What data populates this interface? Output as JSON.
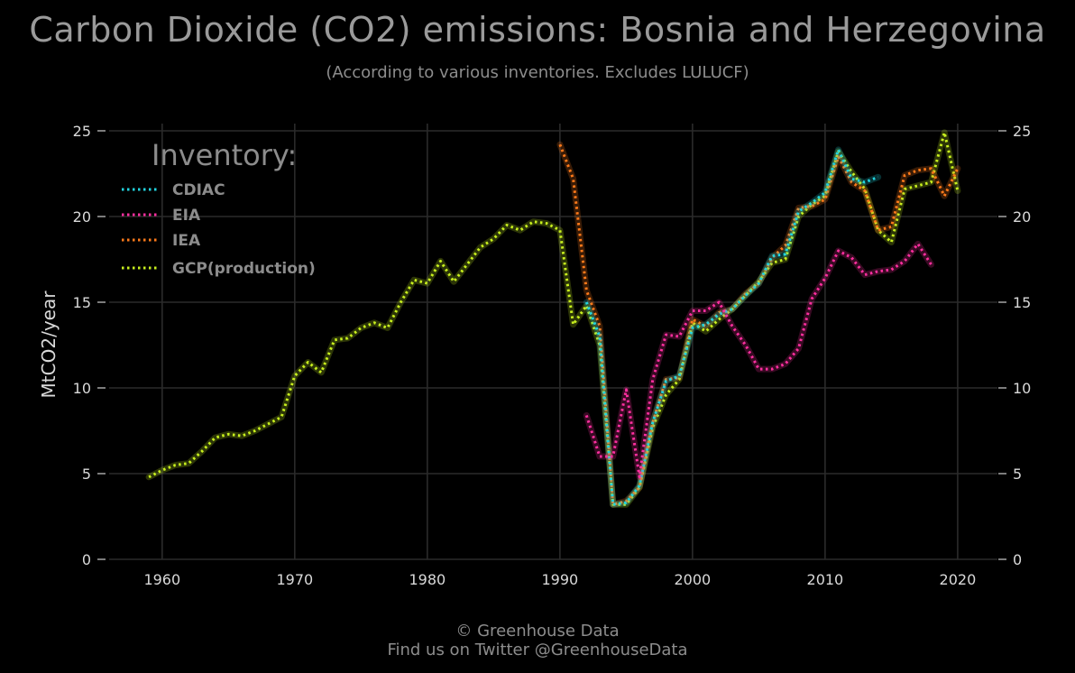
{
  "colors": {
    "background": "#000000",
    "title": "#9a9a9a",
    "text": "#d9d9d9",
    "grid": "#2b2b2b",
    "CDIAC": "#22d4e0",
    "EIA": "#ff2fa0",
    "IEA": "#ff7a1a",
    "GCP": "#c8f01e"
  },
  "chart_data": {
    "type": "line",
    "title": "Carbon Dioxide (CO2) emissions: Bosnia and Herzegovina",
    "subtitle": "(According to various inventories. Excludes LULUCF)",
    "xlabel": "",
    "ylabel": "MtCO2/year",
    "xlim": [
      1956,
      2023
    ],
    "ylim": [
      0,
      26
    ],
    "x_ticks": [
      1960,
      1970,
      1980,
      1990,
      2000,
      2010,
      2020
    ],
    "y_ticks": [
      0,
      5,
      10,
      15,
      20,
      25
    ],
    "grid": true,
    "secondary_y_axis": true,
    "legend": {
      "title": "Inventory:",
      "position": "top-left",
      "entries": [
        "CDIAC",
        "EIA",
        "IEA",
        "GCP(production)"
      ]
    },
    "series": [
      {
        "name": "GCP(production)",
        "color_key": "GCP",
        "x": [
          1959,
          1960,
          1961,
          1962,
          1963,
          1964,
          1965,
          1966,
          1967,
          1968,
          1969,
          1970,
          1971,
          1972,
          1973,
          1974,
          1975,
          1976,
          1977,
          1978,
          1979,
          1980,
          1981,
          1982,
          1983,
          1984,
          1985,
          1986,
          1987,
          1988,
          1989,
          1990,
          1991,
          1992,
          1993,
          1994,
          1995,
          1996,
          1997,
          1998,
          1999,
          2000,
          2001,
          2002,
          2003,
          2004,
          2005,
          2006,
          2007,
          2008,
          2009,
          2010,
          2011,
          2012,
          2013,
          2014,
          2015,
          2016,
          2017,
          2018,
          2019,
          2020
        ],
        "values": [
          4.8,
          5.2,
          5.5,
          5.6,
          6.3,
          7.1,
          7.3,
          7.2,
          7.5,
          7.9,
          8.3,
          10.7,
          11.5,
          10.9,
          12.8,
          12.9,
          13.5,
          13.8,
          13.5,
          15.0,
          16.3,
          16.1,
          17.4,
          16.2,
          17.2,
          18.2,
          18.7,
          19.5,
          19.2,
          19.7,
          19.6,
          19.2,
          13.7,
          14.8,
          12.5,
          3.2,
          3.2,
          4.2,
          7.7,
          9.6,
          10.5,
          13.8,
          13.3,
          14.0,
          14.6,
          15.4,
          16.2,
          17.3,
          17.5,
          20.0,
          20.7,
          21.2,
          23.8,
          22.6,
          21.6,
          19.2,
          18.5,
          21.6,
          21.8,
          22.0,
          24.9,
          21.5
        ]
      },
      {
        "name": "IEA",
        "color_key": "IEA",
        "x": [
          1990,
          1991,
          1992,
          1993,
          1994,
          1995,
          1996,
          1997,
          1998,
          1999,
          2000,
          2001,
          2002,
          2003,
          2004,
          2005,
          2006,
          2007,
          2008,
          2009,
          2010,
          2011,
          2012,
          2013,
          2014,
          2015,
          2016,
          2017,
          2018,
          2019,
          2020
        ],
        "values": [
          24.2,
          22.2,
          15.7,
          13.6,
          3.2,
          3.4,
          4.2,
          8.0,
          10.5,
          10.6,
          14.0,
          13.6,
          14.4,
          14.6,
          15.5,
          16.1,
          17.6,
          18.3,
          20.5,
          20.6,
          21.0,
          23.5,
          22.0,
          21.5,
          19.2,
          19.4,
          22.4,
          22.7,
          22.8,
          21.2,
          22.8
        ]
      },
      {
        "name": "CDIAC",
        "color_key": "CDIAC",
        "x": [
          1992,
          1993,
          1994,
          1995,
          1996,
          1997,
          1998,
          1999,
          2000,
          2001,
          2002,
          2003,
          2004,
          2005,
          2006,
          2007,
          2008,
          2009,
          2010,
          2011,
          2012,
          2013,
          2014
        ],
        "values": [
          15.0,
          13.0,
          3.2,
          3.3,
          4.3,
          8.0,
          10.4,
          10.7,
          13.5,
          13.7,
          14.3,
          14.6,
          15.4,
          16.1,
          17.7,
          17.8,
          20.3,
          20.8,
          21.4,
          23.9,
          22.2,
          22.0,
          22.3
        ]
      },
      {
        "name": "EIA",
        "color_key": "EIA",
        "x": [
          1992,
          1993,
          1994,
          1995,
          1996,
          1997,
          1998,
          1999,
          2000,
          2001,
          2002,
          2003,
          2004,
          2005,
          2006,
          2007,
          2008,
          2009,
          2010,
          2011,
          2012,
          2013,
          2014,
          2015,
          2016,
          2017,
          2018
        ],
        "values": [
          8.4,
          6.0,
          6.0,
          9.9,
          4.8,
          10.5,
          13.1,
          13.0,
          14.5,
          14.5,
          15.0,
          13.6,
          12.5,
          11.1,
          11.1,
          11.4,
          12.3,
          15.2,
          16.4,
          18.0,
          17.6,
          16.6,
          16.8,
          16.9,
          17.4,
          18.4,
          17.2
        ]
      }
    ]
  },
  "footer": {
    "line1": "© Greenhouse Data",
    "line2": "Find us on Twitter @GreenhouseData"
  }
}
